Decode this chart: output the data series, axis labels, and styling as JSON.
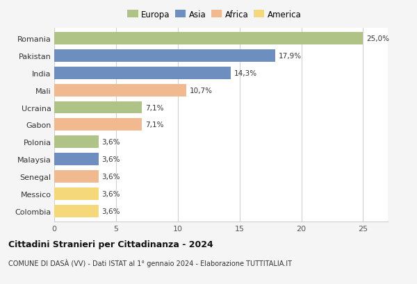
{
  "categories": [
    "Romania",
    "Pakistan",
    "India",
    "Mali",
    "Ucraina",
    "Gabon",
    "Polonia",
    "Malaysia",
    "Senegal",
    "Messico",
    "Colombia"
  ],
  "values": [
    25.0,
    17.9,
    14.3,
    10.7,
    7.1,
    7.1,
    3.6,
    3.6,
    3.6,
    3.6,
    3.6
  ],
  "labels": [
    "25,0%",
    "17,9%",
    "14,3%",
    "10,7%",
    "7,1%",
    "7,1%",
    "3,6%",
    "3,6%",
    "3,6%",
    "3,6%",
    "3,6%"
  ],
  "colors": [
    "#aec385",
    "#6d8ebf",
    "#6d8ebf",
    "#f0b990",
    "#aec385",
    "#f0b990",
    "#aec385",
    "#6d8ebf",
    "#f0b990",
    "#f5d87a",
    "#f5d87a"
  ],
  "legend_labels": [
    "Europa",
    "Asia",
    "Africa",
    "America"
  ],
  "legend_colors": [
    "#aec385",
    "#6d8ebf",
    "#f0b990",
    "#f5d87a"
  ],
  "title": "Cittadini Stranieri per Cittadinanza - 2024",
  "subtitle": "COMUNE DI DASÀ (VV) - Dati ISTAT al 1° gennaio 2024 - Elaborazione TUTTITALIA.IT",
  "xlim": [
    0,
    27
  ],
  "xticks": [
    0,
    5,
    10,
    15,
    20,
    25
  ],
  "background_color": "#f5f5f5",
  "bar_background": "#ffffff",
  "grid_color": "#d0d0d0"
}
